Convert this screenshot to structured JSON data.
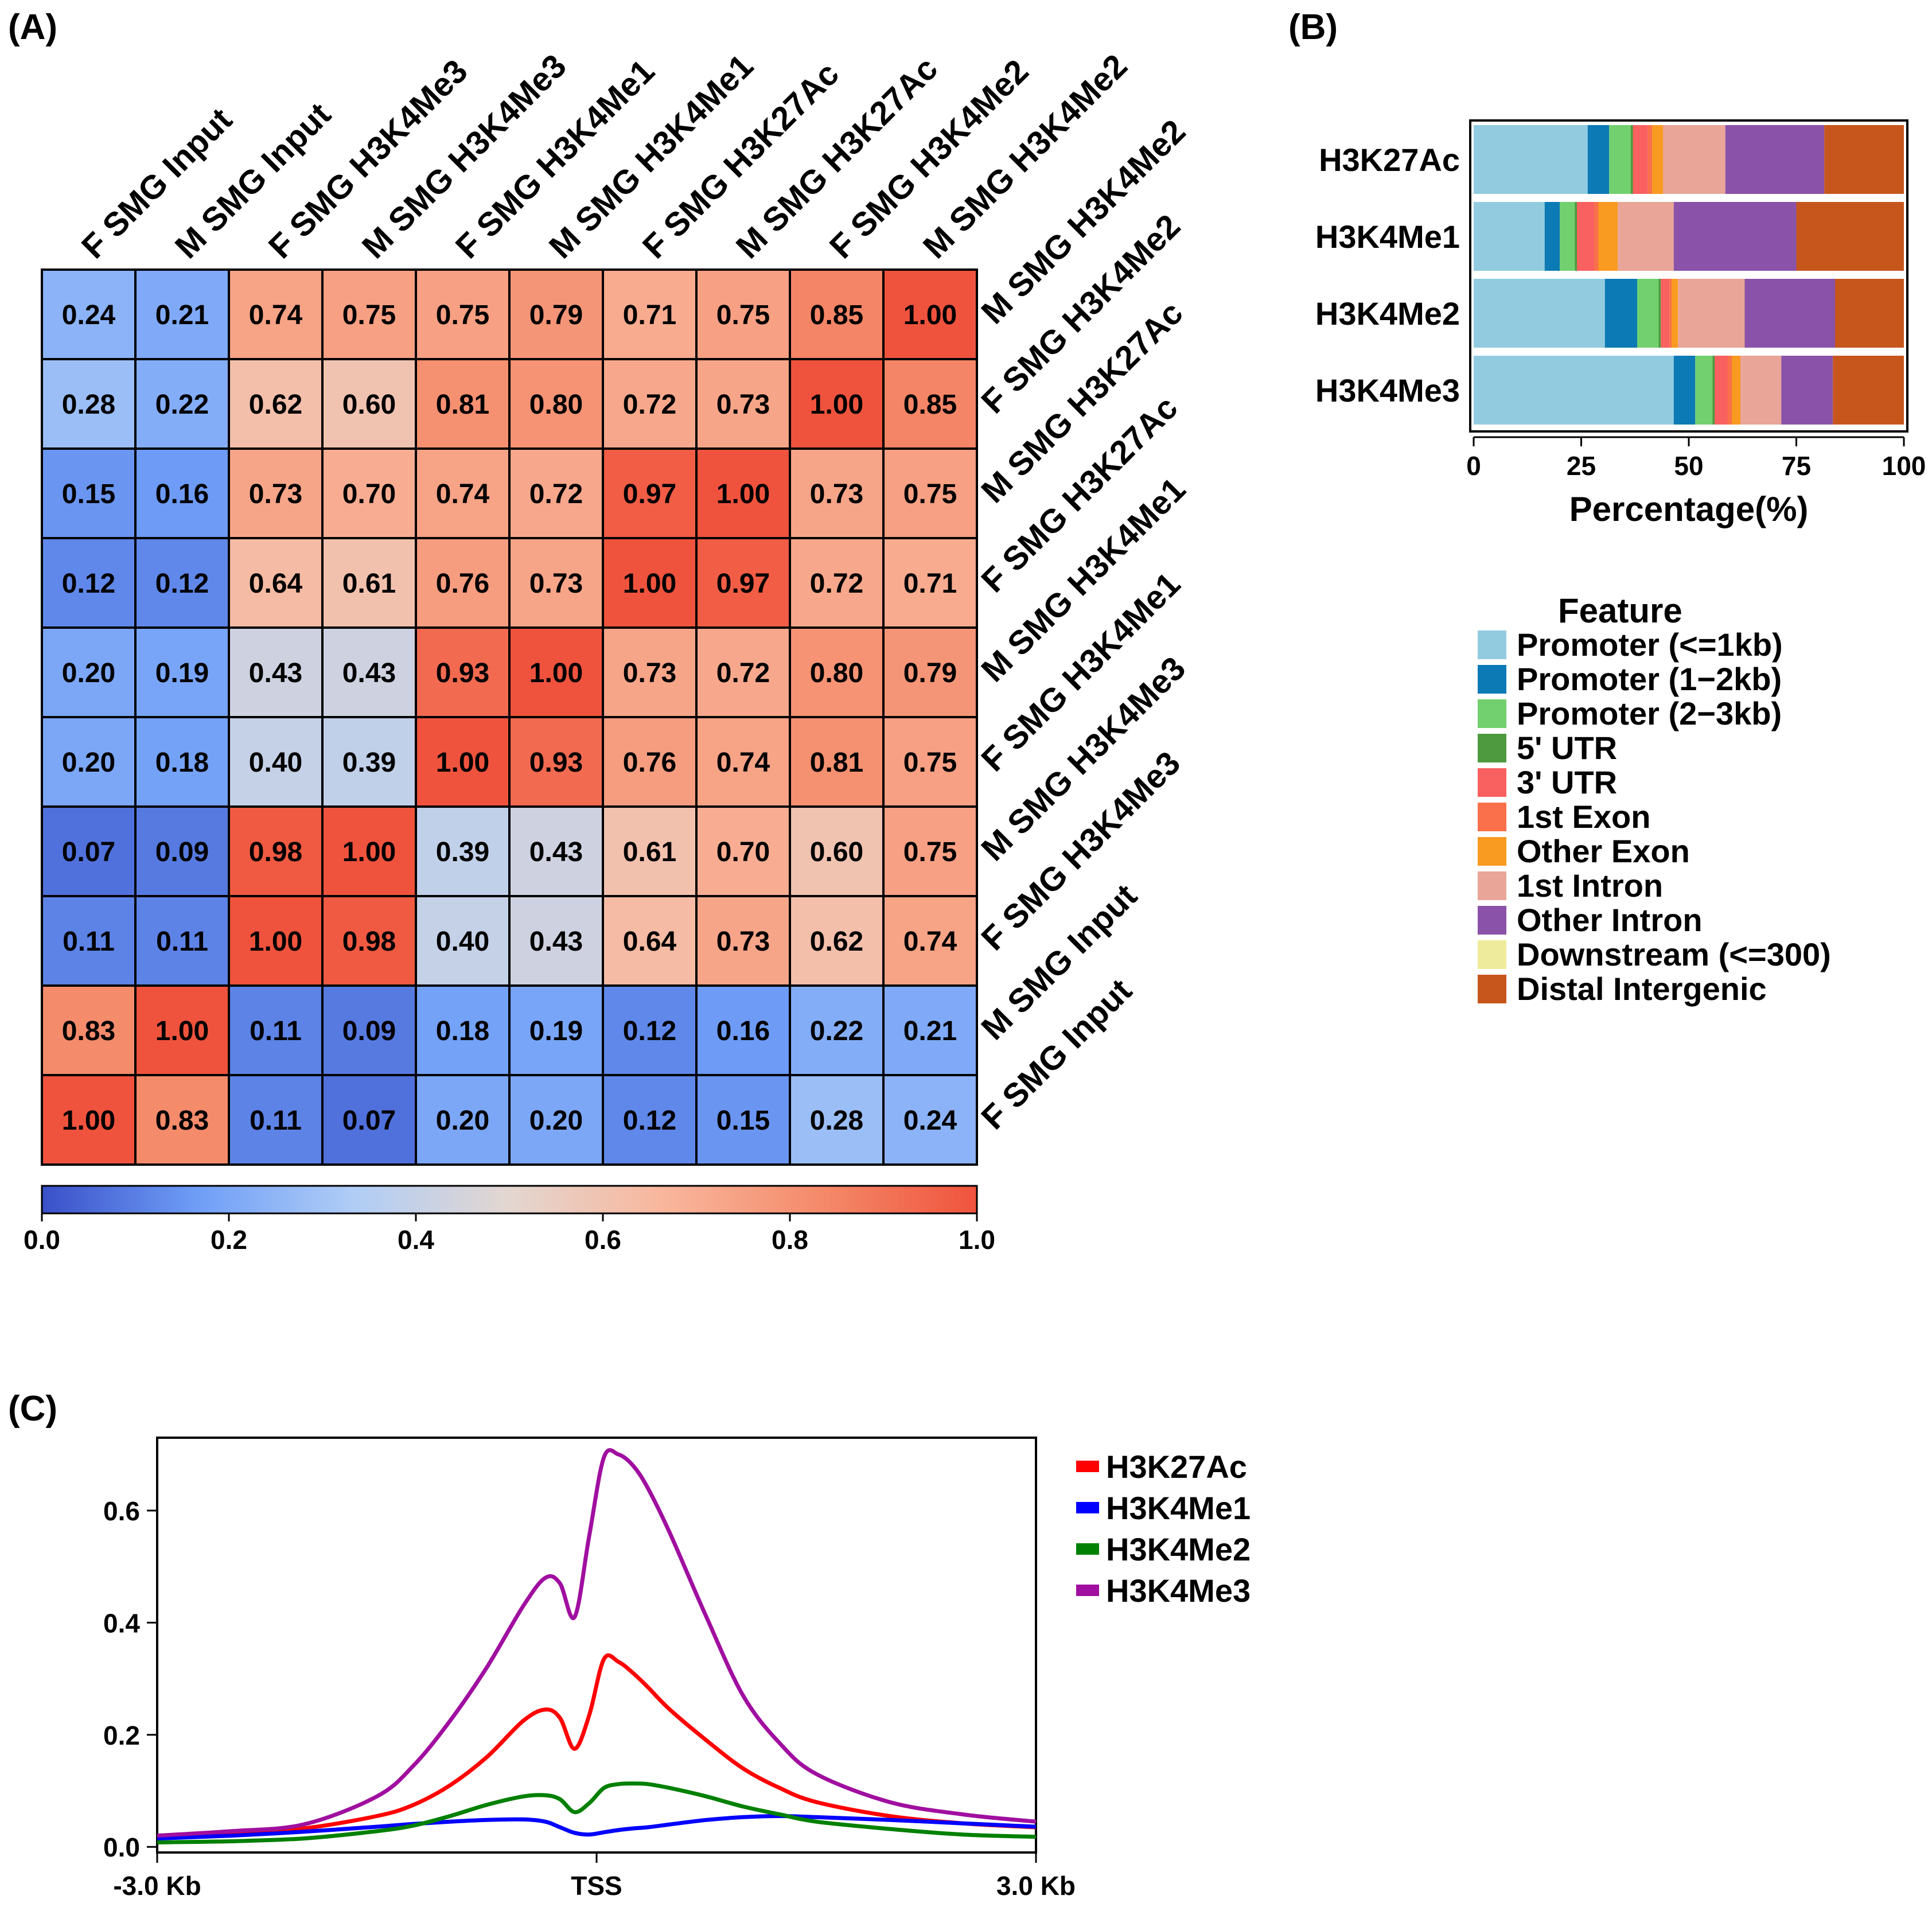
{
  "panels": {
    "a_label": "(A)",
    "b_label": "(B)",
    "c_label": "(C)"
  },
  "chart_data": [
    {
      "type": "heatmap",
      "panel": "(A)",
      "columns": [
        "F SMG Input",
        "M SMG Input",
        "F SMG H3K4Me3",
        "M SMG H3K4Me3",
        "F SMG H3K4Me1",
        "M SMG H3K4Me1",
        "F SMG H3K27Ac",
        "M SMG H3K27Ac",
        "F SMG H3K4Me2",
        "M SMG H3K4Me2"
      ],
      "rows": [
        "M SMG H3K4Me2",
        "F SMG H3K4Me2",
        "M SMG H3K27Ac",
        "F SMG H3K27Ac",
        "M SMG H3K4Me1",
        "F SMG H3K4Me1",
        "M SMG H3K4Me3",
        "F SMG H3K4Me3",
        "M SMG Input",
        "F SMG Input"
      ],
      "values": [
        [
          0.24,
          0.21,
          0.74,
          0.75,
          0.75,
          0.79,
          0.71,
          0.75,
          0.85,
          1.0
        ],
        [
          0.28,
          0.22,
          0.62,
          0.6,
          0.81,
          0.8,
          0.72,
          0.73,
          1.0,
          0.85
        ],
        [
          0.15,
          0.16,
          0.73,
          0.7,
          0.74,
          0.72,
          0.97,
          1.0,
          0.73,
          0.75
        ],
        [
          0.12,
          0.12,
          0.64,
          0.61,
          0.76,
          0.73,
          1.0,
          0.97,
          0.72,
          0.71
        ],
        [
          0.2,
          0.19,
          0.43,
          0.43,
          0.93,
          1.0,
          0.73,
          0.72,
          0.8,
          0.79
        ],
        [
          0.2,
          0.18,
          0.4,
          0.39,
          1.0,
          0.93,
          0.76,
          0.74,
          0.81,
          0.75
        ],
        [
          0.07,
          0.09,
          0.98,
          1.0,
          0.39,
          0.43,
          0.61,
          0.7,
          0.6,
          0.75
        ],
        [
          0.11,
          0.11,
          1.0,
          0.98,
          0.4,
          0.43,
          0.64,
          0.73,
          0.62,
          0.74
        ],
        [
          0.83,
          1.0,
          0.11,
          0.09,
          0.18,
          0.19,
          0.12,
          0.16,
          0.22,
          0.21
        ],
        [
          1.0,
          0.83,
          0.11,
          0.07,
          0.2,
          0.2,
          0.12,
          0.15,
          0.28,
          0.24
        ]
      ],
      "colorbar": {
        "range": [
          0.0,
          1.0
        ],
        "ticks": [
          "0.0",
          "0.2",
          "0.4",
          "0.6",
          "0.8",
          "1.0"
        ],
        "colors": [
          "#3a50c8",
          "#6f9ef7",
          "#b0cdf6",
          "#e3d6d0",
          "#f9b69c",
          "#f48a6a",
          "#f0533d"
        ]
      }
    },
    {
      "type": "bar",
      "stacked": true,
      "orientation": "horizontal",
      "panel": "(B)",
      "categories": [
        "H3K27Ac",
        "H3K4Me1",
        "H3K4Me2",
        "H3K4Me3"
      ],
      "xlabel": "Percentage(%)",
      "xlim": [
        0,
        100
      ],
      "xticks": [
        "0",
        "25",
        "50",
        "75",
        "100"
      ],
      "legend_title": "Feature",
      "series": [
        {
          "name": "Promoter (<=1kb)",
          "color": "#92cbe0",
          "values": [
            26.5,
            16.5,
            30.5,
            46.5
          ]
        },
        {
          "name": "Promoter (1−2kb)",
          "color": "#0b7ab5",
          "values": [
            5.0,
            3.5,
            7.5,
            5.0
          ]
        },
        {
          "name": "Promoter (2−3kb)",
          "color": "#72d06f",
          "values": [
            5.0,
            3.5,
            5.0,
            4.0
          ]
        },
        {
          "name": "5' UTR",
          "color": "#4d9a3f",
          "values": [
            0.5,
            0.5,
            0.5,
            0.5
          ]
        },
        {
          "name": "3' UTR",
          "color": "#f96060",
          "values": [
            3.5,
            4.0,
            2.0,
            3.0
          ]
        },
        {
          "name": "1st Exon",
          "color": "#f9704a",
          "values": [
            1.0,
            1.0,
            0.5,
            1.0
          ]
        },
        {
          "name": "Other Exon",
          "color": "#f99a21",
          "values": [
            2.5,
            4.5,
            1.5,
            2.0
          ]
        },
        {
          "name": "1st Intron",
          "color": "#e8a598",
          "values": [
            14.5,
            13.0,
            15.5,
            9.5
          ]
        },
        {
          "name": "Other Intron",
          "color": "#8a52a8",
          "values": [
            23.0,
            28.5,
            21.0,
            12.0
          ]
        },
        {
          "name": "Downstream (<=300)",
          "color": "#eeec9c",
          "values": [
            0.0,
            0.0,
            0.0,
            0.0
          ]
        },
        {
          "name": "Distal Intergenic",
          "color": "#c7561d",
          "values": [
            18.5,
            25.0,
            16.0,
            16.5
          ]
        }
      ]
    },
    {
      "type": "line",
      "panel": "(C)",
      "xtick_labels": [
        "-3.0 Kb",
        "TSS",
        "3.0 Kb"
      ],
      "xlim": [
        -3.0,
        3.0
      ],
      "ylim": [
        -0.01,
        0.73
      ],
      "yticks": [
        "0.0",
        "0.2",
        "0.4",
        "0.6"
      ],
      "x": [
        -3.0,
        -2.5,
        -2.0,
        -1.5,
        -1.25,
        -1.0,
        -0.75,
        -0.5,
        -0.35,
        -0.25,
        -0.15,
        -0.05,
        0.05,
        0.15,
        0.25,
        0.35,
        0.5,
        0.75,
        1.0,
        1.25,
        1.5,
        2.0,
        2.5,
        3.0
      ],
      "series": [
        {
          "name": "H3K27Ac",
          "color": "#ff0000",
          "values": [
            0.018,
            0.025,
            0.033,
            0.055,
            0.075,
            0.11,
            0.16,
            0.225,
            0.245,
            0.23,
            0.175,
            0.235,
            0.335,
            0.33,
            0.31,
            0.285,
            0.245,
            0.19,
            0.14,
            0.105,
            0.08,
            0.055,
            0.042,
            0.035
          ]
        },
        {
          "name": "H3K4Me1",
          "color": "#0000ff",
          "values": [
            0.015,
            0.02,
            0.027,
            0.036,
            0.041,
            0.045,
            0.048,
            0.049,
            0.045,
            0.035,
            0.025,
            0.022,
            0.026,
            0.03,
            0.033,
            0.035,
            0.04,
            0.048,
            0.053,
            0.055,
            0.053,
            0.048,
            0.042,
            0.036
          ]
        },
        {
          "name": "H3K4Me2",
          "color": "#008000",
          "values": [
            0.008,
            0.01,
            0.015,
            0.028,
            0.038,
            0.055,
            0.075,
            0.09,
            0.092,
            0.085,
            0.062,
            0.078,
            0.105,
            0.112,
            0.113,
            0.112,
            0.105,
            0.09,
            0.072,
            0.058,
            0.045,
            0.032,
            0.022,
            0.018
          ]
        },
        {
          "name": "H3K4Me3",
          "color": "#a00fa0",
          "values": [
            0.02,
            0.028,
            0.04,
            0.09,
            0.145,
            0.225,
            0.32,
            0.43,
            0.48,
            0.47,
            0.41,
            0.555,
            0.695,
            0.7,
            0.68,
            0.64,
            0.56,
            0.41,
            0.27,
            0.185,
            0.13,
            0.08,
            0.058,
            0.045
          ]
        }
      ]
    }
  ]
}
